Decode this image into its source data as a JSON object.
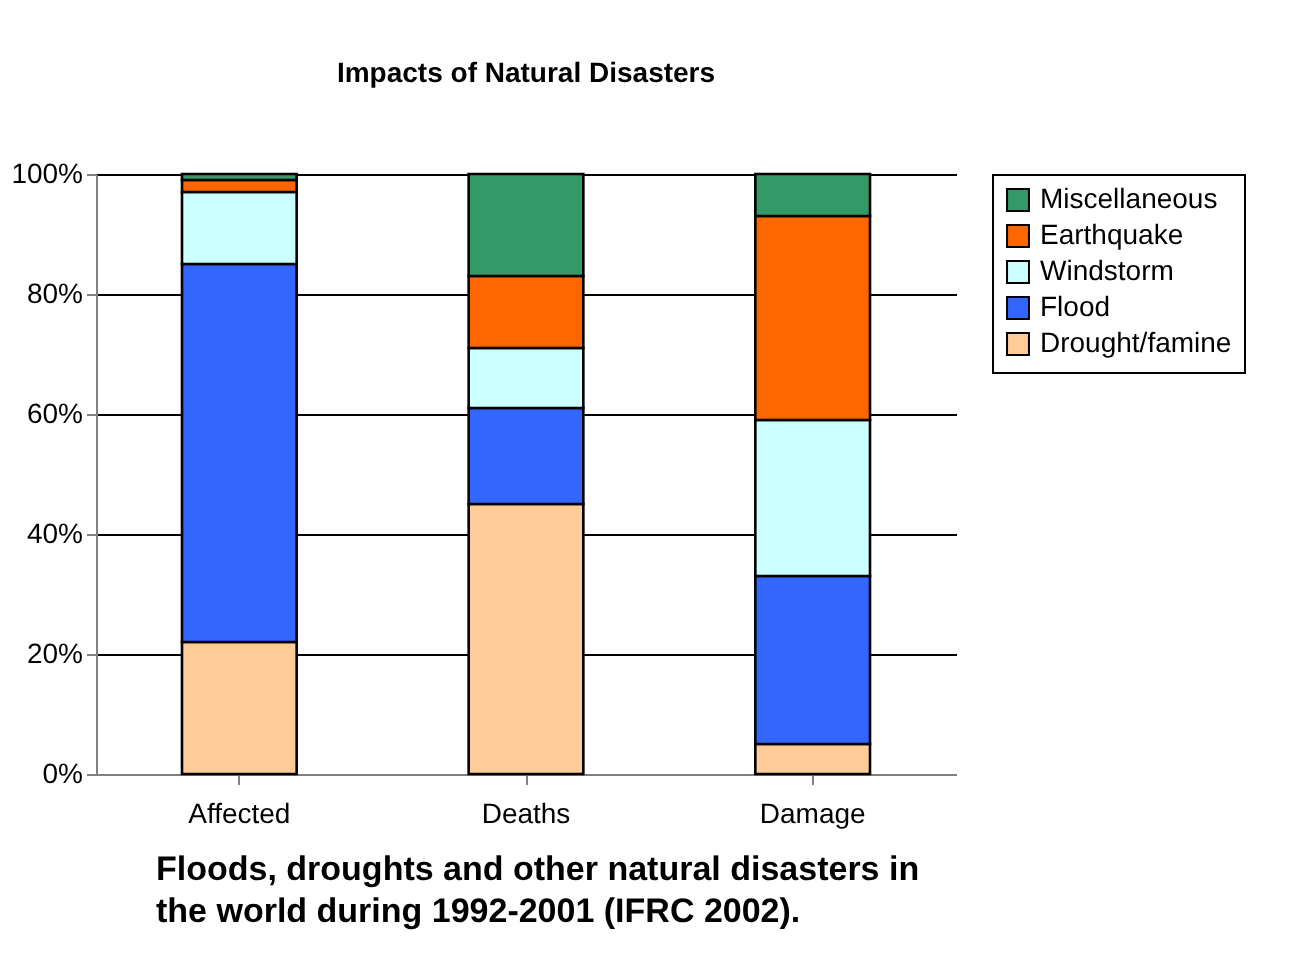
{
  "chart_data": {
    "type": "bar",
    "stacked": true,
    "title": "Impacts of Natural Disasters",
    "categories": [
      "Affected",
      "Deaths",
      "Damage"
    ],
    "series": [
      {
        "name": "Drought/famine",
        "color": "#ffcc99",
        "values": [
          22,
          45,
          5
        ]
      },
      {
        "name": "Flood",
        "color": "#3366ff",
        "values": [
          63,
          16,
          28
        ]
      },
      {
        "name": "Windstorm",
        "color": "#ccffff",
        "values": [
          12,
          10,
          26
        ]
      },
      {
        "name": "Earthquake",
        "color": "#ff6600",
        "values": [
          2,
          12,
          34
        ]
      },
      {
        "name": "Miscellaneous",
        "color": "#339966",
        "values": [
          1,
          17,
          7
        ]
      }
    ],
    "ylim": [
      0,
      100
    ],
    "yticks": [
      {
        "value": 0,
        "label": "0%"
      },
      {
        "value": 20,
        "label": "20%"
      },
      {
        "value": 40,
        "label": "40%"
      },
      {
        "value": 60,
        "label": "60%"
      },
      {
        "value": 80,
        "label": "80%"
      },
      {
        "value": 100,
        "label": "100%"
      }
    ],
    "grid": "y",
    "legend": "right",
    "annotations": [
      "Floods, droughts and other natural disasters in the world during 1992-2001 (IFRC 2002)."
    ]
  }
}
